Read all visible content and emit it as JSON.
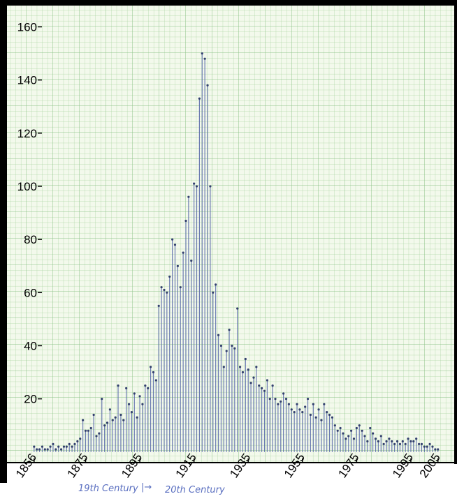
{
  "chart_data": {
    "type": "stem",
    "x": [
      1856,
      1857,
      1858,
      1859,
      1860,
      1861,
      1862,
      1863,
      1864,
      1865,
      1866,
      1867,
      1868,
      1869,
      1870,
      1871,
      1872,
      1873,
      1874,
      1875,
      1876,
      1877,
      1878,
      1879,
      1880,
      1881,
      1882,
      1883,
      1884,
      1885,
      1886,
      1887,
      1888,
      1889,
      1890,
      1891,
      1892,
      1893,
      1894,
      1895,
      1896,
      1897,
      1898,
      1899,
      1900,
      1901,
      1902,
      1903,
      1904,
      1905,
      1906,
      1907,
      1908,
      1909,
      1910,
      1911,
      1912,
      1913,
      1914,
      1915,
      1916,
      1917,
      1918,
      1919,
      1920,
      1921,
      1922,
      1923,
      1924,
      1925,
      1926,
      1927,
      1928,
      1929,
      1930,
      1931,
      1932,
      1933,
      1934,
      1935,
      1936,
      1937,
      1938,
      1939,
      1940,
      1941,
      1942,
      1943,
      1944,
      1945,
      1946,
      1947,
      1948,
      1949,
      1950,
      1951,
      1952,
      1953,
      1954,
      1955,
      1956,
      1957,
      1958,
      1959,
      1960,
      1961,
      1962,
      1963,
      1964,
      1965,
      1966,
      1967,
      1968,
      1969,
      1970,
      1971,
      1972,
      1973,
      1974,
      1975,
      1976,
      1977,
      1978,
      1979,
      1980,
      1981,
      1982,
      1983,
      1984,
      1985,
      1986,
      1987,
      1988,
      1989,
      1990,
      1991,
      1992,
      1993,
      1994,
      1995,
      1996,
      1997,
      1998,
      1999,
      2000,
      2001,
      2002,
      2003,
      2004,
      2005
    ],
    "values": [
      2,
      1,
      1,
      2,
      1,
      1,
      2,
      3,
      1,
      2,
      1,
      2,
      2,
      3,
      2,
      3,
      4,
      5,
      12,
      8,
      8,
      9,
      14,
      6,
      7,
      20,
      10,
      11,
      16,
      12,
      13,
      25,
      14,
      12,
      24,
      18,
      15,
      22,
      13,
      21,
      18,
      25,
      24,
      32,
      30,
      27,
      55,
      62,
      61,
      60,
      66,
      80,
      78,
      70,
      62,
      75,
      87,
      96,
      72,
      101,
      100,
      133,
      150,
      148,
      138,
      100,
      60,
      63,
      44,
      40,
      32,
      38,
      46,
      40,
      39,
      54,
      32,
      30,
      35,
      31,
      26,
      28,
      32,
      25,
      24,
      23,
      27,
      20,
      25,
      20,
      18,
      19,
      22,
      20,
      18,
      16,
      15,
      18,
      16,
      15,
      17,
      20,
      14,
      18,
      13,
      16,
      12,
      18,
      15,
      14,
      13,
      10,
      8,
      9,
      7,
      5,
      6,
      8,
      5,
      9,
      10,
      8,
      6,
      4,
      9,
      7,
      5,
      4,
      6,
      3,
      4,
      5,
      4,
      3,
      4,
      3,
      4,
      3,
      5,
      4,
      4,
      5,
      3,
      3,
      2,
      2,
      3,
      2,
      1,
      1
    ],
    "color": "#5566a8",
    "xlim": [
      1846,
      2011
    ],
    "xticks": [
      1856,
      1875,
      1895,
      1915,
      1935,
      1955,
      1975,
      1995,
      2005
    ],
    "ylim": [
      -4,
      168
    ],
    "yticks": [
      20,
      40,
      60,
      80,
      100,
      120,
      140,
      160
    ],
    "annotations": [
      "19th Century",
      "20th Century"
    ]
  }
}
